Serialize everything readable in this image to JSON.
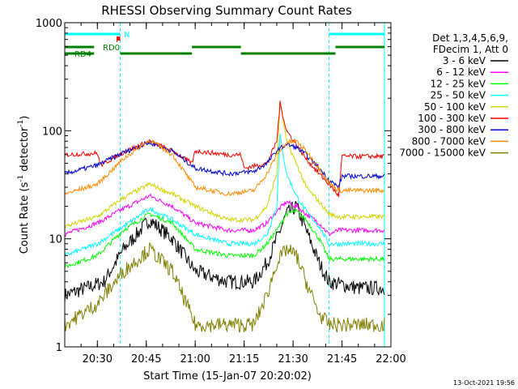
{
  "chart_data": {
    "type": "line",
    "title": "RHESSI Observing Summary Count Rates",
    "xlabel": "Start Time (15-Jan-07 20:20:02)",
    "ylabel_main": "Count Rate (s",
    "ylabel_sup1": "-1",
    "ylabel_mid": " detector",
    "ylabel_sup2": "-1",
    "ylabel_end": ")",
    "ylabel": "Count Rate (s^-1 detector^-1)",
    "timestamp": "13-Oct-2021 19:56",
    "yscale": "log",
    "xlim": [
      "20:20",
      "22:00"
    ],
    "ylim": [
      1,
      1000
    ],
    "xticks": [
      "20:30",
      "20:45",
      "21:00",
      "21:15",
      "21:30",
      "21:45",
      "22:00"
    ],
    "yticks": [
      "1",
      "10",
      "100",
      "1000"
    ],
    "legend_position": "top-right",
    "legend_header": [
      "Det 1,3,4,5,6,9,",
      "FDecim 1, Att 0"
    ],
    "background": "#ffffff",
    "series": [
      {
        "name": "3 - 6 keV",
        "color": "#000000",
        "x": [
          "20:20",
          "20:32",
          "20:38",
          "20:46",
          "20:53",
          "21:00",
          "21:10",
          "21:18",
          "21:22",
          "21:25",
          "21:28",
          "21:31",
          "21:34",
          "21:38",
          "21:41",
          "21:50",
          "21:58"
        ],
        "y": [
          3.0,
          4.0,
          8.0,
          15.0,
          10.0,
          5.0,
          4.0,
          4.0,
          6.0,
          10.0,
          17.0,
          20.0,
          12.0,
          6.0,
          4.0,
          3.5,
          3.5
        ]
      },
      {
        "name": "6 - 12 keV",
        "color": "#ff00ff",
        "x": [
          "20:20",
          "20:30",
          "20:38",
          "20:46",
          "20:53",
          "21:00",
          "21:10",
          "21:18",
          "21:22",
          "21:25",
          "21:28",
          "21:31",
          "21:34",
          "21:38",
          "21:41",
          "21:44",
          "21:50",
          "21:58"
        ],
        "y": [
          11,
          14,
          19,
          25,
          20,
          14,
          12,
          12,
          14,
          18,
          22,
          20,
          17,
          14,
          11,
          12,
          12,
          12
        ]
      },
      {
        "name": "12 - 25 keV",
        "color": "#00ff00",
        "x": [
          "20:20",
          "20:30",
          "20:38",
          "20:46",
          "20:53",
          "21:00",
          "21:10",
          "21:18",
          "21:22",
          "21:25",
          "21:28",
          "21:31",
          "21:34",
          "21:38",
          "21:41",
          "21:44",
          "21:50",
          "21:58"
        ],
        "y": [
          5.5,
          7,
          12,
          17,
          14,
          8,
          7,
          7,
          9,
          12,
          17,
          18,
          15,
          10,
          6.5,
          6.5,
          6.5,
          6.5
        ]
      },
      {
        "name": "25 - 50 keV",
        "color": "#00ffff",
        "x": [
          "20:20",
          "20:30",
          "20:38",
          "20:46",
          "20:53",
          "21:00",
          "21:10",
          "21:18",
          "21:22",
          "21:25",
          "21:26",
          "21:28",
          "21:31",
          "21:34",
          "21:38",
          "21:41",
          "21:44",
          "21:50",
          "21:58"
        ],
        "y": [
          7,
          9,
          13,
          19,
          15,
          11,
          9,
          9,
          11,
          20,
          90,
          40,
          25,
          18,
          13,
          9,
          9,
          9,
          9
        ]
      },
      {
        "name": "50 - 100 keV",
        "color": "#d4d400",
        "x": [
          "20:20",
          "20:30",
          "20:38",
          "20:46",
          "20:53",
          "21:00",
          "21:10",
          "21:18",
          "21:22",
          "21:25",
          "21:26",
          "21:28",
          "21:31",
          "21:34",
          "21:38",
          "21:41",
          "21:44",
          "21:50",
          "21:58"
        ],
        "y": [
          13,
          16,
          24,
          32,
          26,
          20,
          15,
          15,
          20,
          40,
          190,
          80,
          50,
          30,
          22,
          17,
          16,
          16,
          16
        ]
      },
      {
        "name": "100 - 300 keV",
        "color": "#ff0000",
        "x": [
          "20:20",
          "20:30",
          "20:31",
          "20:38",
          "20:46",
          "20:53",
          "20:59",
          "21:00",
          "21:10",
          "21:14",
          "21:15",
          "21:22",
          "21:25",
          "21:26",
          "21:28",
          "21:31",
          "21:34",
          "21:38",
          "21:41",
          "21:44",
          "21:45",
          "21:50",
          "21:58"
        ],
        "y": [
          60,
          62,
          48,
          63,
          80,
          65,
          50,
          65,
          60,
          60,
          45,
          50,
          80,
          180,
          100,
          75,
          55,
          40,
          32,
          25,
          58,
          58,
          58
        ]
      },
      {
        "name": "300 - 800 keV",
        "color": "#0000cc",
        "x": [
          "20:20",
          "20:30",
          "20:38",
          "20:46",
          "20:53",
          "21:00",
          "21:10",
          "21:18",
          "21:22",
          "21:25",
          "21:28",
          "21:31",
          "21:34",
          "21:38",
          "21:41",
          "21:44",
          "21:45",
          "21:50",
          "21:58"
        ],
        "y": [
          40,
          48,
          63,
          78,
          65,
          45,
          40,
          42,
          50,
          65,
          75,
          70,
          60,
          45,
          35,
          30,
          38,
          38,
          38
        ]
      },
      {
        "name": "800 - 7000 keV",
        "color": "#ff8c00",
        "x": [
          "20:20",
          "20:30",
          "20:38",
          "20:46",
          "20:53",
          "21:00",
          "21:10",
          "21:18",
          "21:22",
          "21:25",
          "21:28",
          "21:31",
          "21:34",
          "21:38",
          "21:41",
          "21:44",
          "21:50",
          "21:58"
        ],
        "y": [
          26,
          32,
          55,
          82,
          60,
          30,
          26,
          28,
          40,
          60,
          78,
          80,
          65,
          45,
          33,
          28,
          28,
          28
        ]
      },
      {
        "name": "7000 - 15000 keV",
        "color": "#808000",
        "x": [
          "20:20",
          "20:30",
          "20:38",
          "20:46",
          "20:53",
          "21:00",
          "21:10",
          "21:18",
          "21:22",
          "21:25",
          "21:28",
          "21:31",
          "21:34",
          "21:38",
          "21:41",
          "21:50",
          "21:58"
        ],
        "y": [
          1.6,
          2.5,
          5.0,
          8.0,
          5.0,
          1.6,
          1.6,
          1.6,
          3.0,
          6.0,
          8.0,
          7.0,
          4.0,
          2.0,
          1.6,
          1.6,
          1.6
        ]
      }
    ],
    "flag_bars": [
      {
        "name": "N",
        "color": "#00ffff",
        "segments": [
          [
            "20:20",
            "20:37"
          ],
          [
            "21:41",
            "21:58"
          ]
        ]
      },
      {
        "name": "F",
        "color": "#ff0000",
        "segments": [
          [
            "20:36",
            "20:37"
          ]
        ]
      },
      {
        "name": "RD0",
        "color": "#008000",
        "segments": [
          [
            "20:20",
            "20:29"
          ],
          [
            "20:37",
            "20:59"
          ],
          [
            "20:59",
            "21:14"
          ],
          [
            "21:14",
            "21:43"
          ],
          [
            "21:43",
            "21:58"
          ]
        ]
      },
      {
        "name": "RD4",
        "color": "#008000",
        "segments": [
          [
            "20:20",
            "20:29"
          ]
        ]
      }
    ],
    "vlines_cyan": [
      "20:20",
      "20:37",
      "21:41",
      "21:58"
    ]
  }
}
